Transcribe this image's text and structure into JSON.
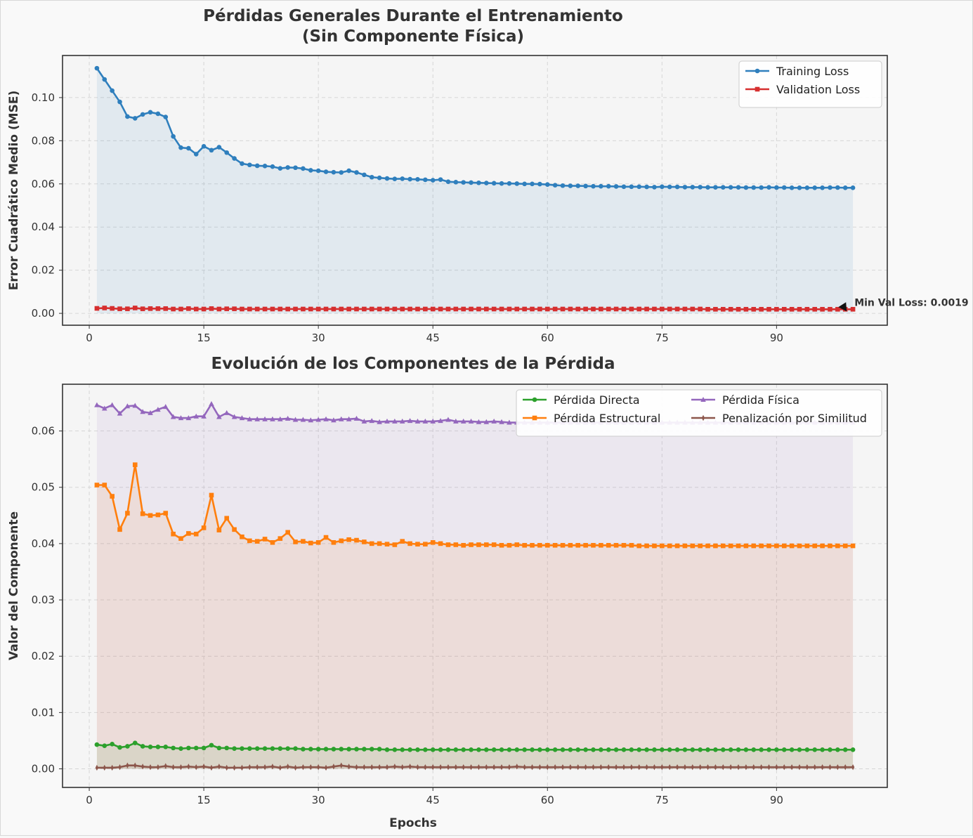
{
  "figure": {
    "background": "#f9f9f9",
    "plot_background": "#f5f5f5"
  },
  "chart_data": [
    {
      "type": "line",
      "title": "Pérdidas Generales Durante el Entrenamiento\n(Sin Componente Física)",
      "title_lines": [
        "Pérdidas Generales Durante el Entrenamiento",
        "(Sin Componente Física)"
      ],
      "xlabel": "",
      "ylabel": "Error Cuadrático Medio (MSE)",
      "xlim": [
        -3.5,
        104.5
      ],
      "ylim": [
        -0.0055,
        0.1195
      ],
      "xticks": [
        0,
        15,
        30,
        45,
        60,
        75,
        90
      ],
      "yticks": [
        0.0,
        0.02,
        0.04,
        0.06,
        0.08,
        0.1
      ],
      "ytick_labels": [
        "0.00",
        "0.02",
        "0.04",
        "0.06",
        "0.08",
        "0.10"
      ],
      "grid": true,
      "legend_position": "upper-right",
      "annotation": {
        "text": "Min Val Loss: 0.0019",
        "x": 99,
        "y": 0.0019
      },
      "fill_under": [
        "Training Loss"
      ],
      "series": [
        {
          "name": "Training Loss",
          "color": "#2f7fbd",
          "marker": "circle",
          "x_start": 1,
          "values": [
            0.1136,
            0.1084,
            0.1032,
            0.098,
            0.0912,
            0.0904,
            0.0922,
            0.0932,
            0.0925,
            0.091,
            0.082,
            0.0768,
            0.0765,
            0.0738,
            0.0774,
            0.0756,
            0.077,
            0.0745,
            0.0718,
            0.0694,
            0.0688,
            0.0684,
            0.0683,
            0.068,
            0.0672,
            0.0676,
            0.0675,
            0.0671,
            0.0663,
            0.0661,
            0.0656,
            0.0654,
            0.0653,
            0.0661,
            0.0653,
            0.0642,
            0.0631,
            0.0628,
            0.0625,
            0.0623,
            0.0624,
            0.0622,
            0.0621,
            0.0619,
            0.0617,
            0.062,
            0.061,
            0.0608,
            0.0607,
            0.0606,
            0.0605,
            0.0604,
            0.0603,
            0.0602,
            0.0602,
            0.0601,
            0.06,
            0.06,
            0.0599,
            0.0597,
            0.0594,
            0.0592,
            0.0591,
            0.0591,
            0.059,
            0.0589,
            0.0589,
            0.0589,
            0.0588,
            0.0587,
            0.0587,
            0.0587,
            0.0586,
            0.0585,
            0.0587,
            0.0586,
            0.0586,
            0.0585,
            0.0585,
            0.0585,
            0.0584,
            0.0584,
            0.0584,
            0.0584,
            0.0584,
            0.0583,
            0.0583,
            0.0583,
            0.0584,
            0.0583,
            0.0583,
            0.0582,
            0.0582,
            0.0582,
            0.0582,
            0.0582,
            0.0583,
            0.0583,
            0.0582,
            0.0582
          ]
        },
        {
          "name": "Validation Loss",
          "color": "#d62f2f",
          "marker": "square",
          "x_start": 1,
          "values": [
            0.0023,
            0.0025,
            0.0023,
            0.0021,
            0.0021,
            0.0025,
            0.0021,
            0.0022,
            0.0022,
            0.0022,
            0.002,
            0.002,
            0.0022,
            0.002,
            0.002,
            0.0022,
            0.002,
            0.0021,
            0.0021,
            0.002,
            0.002,
            0.002,
            0.002,
            0.002,
            0.002,
            0.002,
            0.002,
            0.002,
            0.002,
            0.002,
            0.002,
            0.002,
            0.002,
            0.002,
            0.002,
            0.002,
            0.002,
            0.002,
            0.002,
            0.002,
            0.002,
            0.002,
            0.002,
            0.002,
            0.002,
            0.002,
            0.002,
            0.002,
            0.002,
            0.002,
            0.002,
            0.002,
            0.002,
            0.002,
            0.002,
            0.002,
            0.002,
            0.002,
            0.002,
            0.002,
            0.002,
            0.002,
            0.002,
            0.002,
            0.002,
            0.002,
            0.002,
            0.002,
            0.002,
            0.002,
            0.002,
            0.002,
            0.002,
            0.002,
            0.002,
            0.002,
            0.002,
            0.002,
            0.002,
            0.002,
            0.0019,
            0.0019,
            0.0019,
            0.0019,
            0.0019,
            0.0019,
            0.0019,
            0.0019,
            0.0019,
            0.0019,
            0.0019,
            0.0019,
            0.0019,
            0.0019,
            0.0019,
            0.0019,
            0.0019,
            0.0019,
            0.0019,
            0.0019
          ]
        }
      ]
    },
    {
      "type": "line",
      "title": "Evolución de los Componentes de la Pérdida",
      "title_lines": [
        "Evolución de los Componentes de la Pérdida"
      ],
      "xlabel": "Epochs",
      "ylabel": "Valor del Componente",
      "xlim": [
        -3.5,
        104.5
      ],
      "ylim": [
        -0.0033,
        0.0683
      ],
      "xticks": [
        0,
        15,
        30,
        45,
        60,
        75,
        90
      ],
      "yticks": [
        0.0,
        0.01,
        0.02,
        0.03,
        0.04,
        0.05,
        0.06
      ],
      "ytick_labels": [
        "0.00",
        "0.01",
        "0.02",
        "0.03",
        "0.04",
        "0.05",
        "0.06"
      ],
      "grid": true,
      "legend_position": "upper-right",
      "legend_columns": 2,
      "fill_under": [
        "Pérdida Directa",
        "Pérdida Estructural",
        "Pérdida Física",
        "Penalización por Similitud"
      ],
      "series": [
        {
          "name": "Pérdida Directa",
          "color": "#2ca02c",
          "marker": "circle",
          "x_start": 1,
          "values": [
            0.0043,
            0.0041,
            0.0044,
            0.0038,
            0.004,
            0.0046,
            0.004,
            0.0039,
            0.0039,
            0.0039,
            0.0037,
            0.0036,
            0.0037,
            0.0037,
            0.0037,
            0.0042,
            0.0037,
            0.0037,
            0.0036,
            0.0036,
            0.0036,
            0.0036,
            0.0036,
            0.0036,
            0.0036,
            0.0036,
            0.0036,
            0.0035,
            0.0035,
            0.0035,
            0.0035,
            0.0035,
            0.0035,
            0.0035,
            0.0035,
            0.0035,
            0.0035,
            0.0035,
            0.0034,
            0.0034,
            0.0034,
            0.0034,
            0.0034,
            0.0034,
            0.0034,
            0.0034,
            0.0034,
            0.0034,
            0.0034,
            0.0034,
            0.0034,
            0.0034,
            0.0034,
            0.0034,
            0.0034,
            0.0034,
            0.0034,
            0.0034,
            0.0034,
            0.0034,
            0.0034,
            0.0034,
            0.0034,
            0.0034,
            0.0034,
            0.0034,
            0.0034,
            0.0034,
            0.0034,
            0.0034,
            0.0034,
            0.0034,
            0.0034,
            0.0034,
            0.0034,
            0.0034,
            0.0034,
            0.0034,
            0.0034,
            0.0034,
            0.0034,
            0.0034,
            0.0034,
            0.0034,
            0.0034,
            0.0034,
            0.0034,
            0.0034,
            0.0034,
            0.0034,
            0.0034,
            0.0034,
            0.0034,
            0.0034,
            0.0034,
            0.0034,
            0.0034,
            0.0034,
            0.0034,
            0.0034
          ]
        },
        {
          "name": "Pérdida Estructural",
          "color": "#ff7f0e",
          "marker": "square",
          "x_start": 1,
          "values": [
            0.0504,
            0.0504,
            0.0484,
            0.0425,
            0.0454,
            0.054,
            0.0453,
            0.045,
            0.0451,
            0.0454,
            0.0417,
            0.0409,
            0.0418,
            0.0417,
            0.0428,
            0.0486,
            0.0424,
            0.0445,
            0.0425,
            0.0412,
            0.0405,
            0.0404,
            0.0408,
            0.0402,
            0.0409,
            0.042,
            0.0403,
            0.0404,
            0.0401,
            0.0402,
            0.0411,
            0.0402,
            0.0405,
            0.0407,
            0.0406,
            0.0403,
            0.04,
            0.04,
            0.0399,
            0.0398,
            0.0404,
            0.04,
            0.0399,
            0.0399,
            0.0402,
            0.04,
            0.0398,
            0.0398,
            0.0397,
            0.0398,
            0.0398,
            0.0398,
            0.0398,
            0.0397,
            0.0397,
            0.0398,
            0.0397,
            0.0397,
            0.0397,
            0.0397,
            0.0397,
            0.0397,
            0.0397,
            0.0397,
            0.0397,
            0.0397,
            0.0397,
            0.0397,
            0.0397,
            0.0397,
            0.0397,
            0.0396,
            0.0396,
            0.0396,
            0.0396,
            0.0396,
            0.0396,
            0.0396,
            0.0396,
            0.0396,
            0.0396,
            0.0396,
            0.0396,
            0.0396,
            0.0396,
            0.0396,
            0.0396,
            0.0396,
            0.0396,
            0.0396,
            0.0396,
            0.0396,
            0.0396,
            0.0396,
            0.0396,
            0.0396,
            0.0396,
            0.0396,
            0.0396,
            0.0396
          ]
        },
        {
          "name": "Pérdida Física",
          "color": "#9467bd",
          "marker": "triangle",
          "x_start": 1,
          "values": [
            0.0646,
            0.064,
            0.0646,
            0.0631,
            0.0644,
            0.0645,
            0.0634,
            0.0632,
            0.0638,
            0.0643,
            0.0625,
            0.0623,
            0.0623,
            0.0626,
            0.0626,
            0.0648,
            0.0625,
            0.0632,
            0.0625,
            0.0623,
            0.0621,
            0.0621,
            0.0621,
            0.0621,
            0.0621,
            0.0622,
            0.062,
            0.062,
            0.0619,
            0.062,
            0.0621,
            0.0619,
            0.0621,
            0.0621,
            0.0622,
            0.0617,
            0.0618,
            0.0616,
            0.0617,
            0.0617,
            0.0617,
            0.0618,
            0.0617,
            0.0617,
            0.0617,
            0.0618,
            0.062,
            0.0617,
            0.0617,
            0.0617,
            0.0616,
            0.0616,
            0.0617,
            0.0616,
            0.0615,
            0.0615,
            0.0615,
            0.0615,
            0.0615,
            0.0615,
            0.0615,
            0.0615,
            0.0615,
            0.0615,
            0.0615,
            0.0615,
            0.0615,
            0.0615,
            0.0615,
            0.0615,
            0.0615,
            0.0615,
            0.0615,
            0.0615,
            0.0615,
            0.0615,
            0.0615,
            0.0615,
            0.0615,
            0.0615,
            0.0615,
            0.0615,
            0.0615,
            0.0615,
            0.0615,
            0.0615,
            0.0615,
            0.0615,
            0.0615,
            0.0615,
            0.0615,
            0.0615,
            0.0615,
            0.0615,
            0.0615,
            0.0615,
            0.0615,
            0.0615,
            0.0615,
            0.0615
          ]
        },
        {
          "name": "Penalización por Similitud",
          "color": "#8c564b",
          "marker": "thin_diamond",
          "x_start": 1,
          "values": [
            0.0002,
            0.0002,
            0.0002,
            0.0003,
            0.0006,
            0.0006,
            0.0004,
            0.0003,
            0.0003,
            0.0005,
            0.0003,
            0.0003,
            0.0004,
            0.0003,
            0.0004,
            0.0002,
            0.0004,
            0.0002,
            0.0002,
            0.0002,
            0.0003,
            0.0003,
            0.0003,
            0.0004,
            0.0002,
            0.0004,
            0.0002,
            0.0003,
            0.0003,
            0.0003,
            0.0002,
            0.0004,
            0.0006,
            0.0004,
            0.0003,
            0.0003,
            0.0003,
            0.0003,
            0.0003,
            0.0004,
            0.0003,
            0.0004,
            0.0003,
            0.0003,
            0.0003,
            0.0003,
            0.0003,
            0.0003,
            0.0003,
            0.0003,
            0.0003,
            0.0003,
            0.0003,
            0.0003,
            0.0003,
            0.0004,
            0.0003,
            0.0003,
            0.0003,
            0.0003,
            0.0003,
            0.0003,
            0.0003,
            0.0003,
            0.0003,
            0.0003,
            0.0003,
            0.0003,
            0.0003,
            0.0003,
            0.0003,
            0.0003,
            0.0003,
            0.0003,
            0.0003,
            0.0003,
            0.0003,
            0.0003,
            0.0003,
            0.0003,
            0.0003,
            0.0003,
            0.0003,
            0.0003,
            0.0003,
            0.0003,
            0.0003,
            0.0003,
            0.0003,
            0.0003,
            0.0003,
            0.0003,
            0.0003,
            0.0003,
            0.0003,
            0.0003,
            0.0003,
            0.0003,
            0.0003,
            0.0003
          ]
        }
      ]
    }
  ]
}
